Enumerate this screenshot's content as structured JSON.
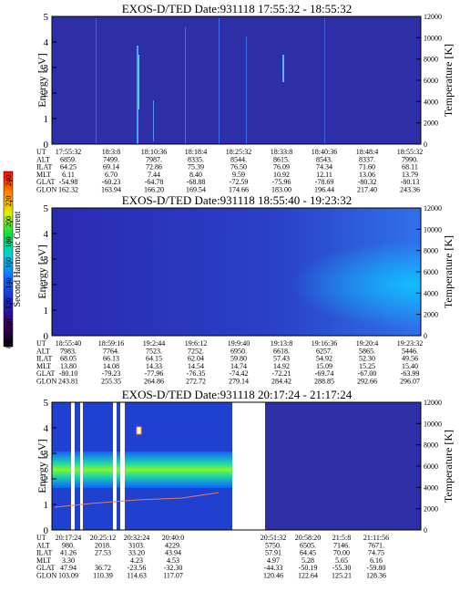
{
  "panels": [
    {
      "title": "EXOS-D/TED   Date:931118   17:55:32 - 18:55:32",
      "y_label": "Energy [eV]",
      "y2_label": "Temperature [K]",
      "ylim": [
        0,
        5
      ],
      "yticks": [
        0,
        1,
        2,
        3,
        4,
        5
      ],
      "y2lim": [
        0,
        12000
      ],
      "y2ticks": [
        0,
        2000,
        4000,
        6000,
        8000,
        10000,
        12000
      ],
      "table": {
        "row_labels": [
          "UT",
          "ALT",
          "ILAT",
          "MLT",
          "GLAT",
          "GLON"
        ],
        "rows": [
          [
            "17:55:32",
            "18:3:8",
            "18:10:36",
            "18:18:4",
            "18:25:32",
            "18:33:8",
            "18:40:36",
            "18:48:4",
            "18:55:32"
          ],
          [
            "6859.",
            "7499.",
            "7987.",
            "8335.",
            "8544.",
            "8615.",
            "8543.",
            "8337.",
            "7990."
          ],
          [
            "64.25",
            "69.14",
            "72.86",
            "75.39",
            "76.50",
            "76.09",
            "74.34",
            "71.60",
            "68.11"
          ],
          [
            "6.11",
            "6.70",
            "7.44",
            "8.40",
            "9.59",
            "10.92",
            "12.11",
            "13.06",
            "13.79"
          ],
          [
            "-54.98",
            "-60.23",
            "-64.78",
            "-68.88",
            "-72.59",
            "-75.96",
            "-78.69",
            "-80.32",
            "-80.13"
          ],
          [
            "162.32",
            "163.94",
            "166.20",
            "169.54",
            "174.66",
            "183.00",
            "196.44",
            "217.40",
            "243.36"
          ]
        ]
      }
    },
    {
      "title": "EXOS-D/TED   Date:931118   18:55:40 - 19:23:32",
      "y_label": "Energy [eV]",
      "y2_label": "Temperature [K]",
      "ylim": [
        0,
        5
      ],
      "yticks": [
        0,
        1,
        2,
        3,
        4,
        5
      ],
      "y2lim": [
        0,
        12000
      ],
      "y2ticks": [
        0,
        2000,
        4000,
        6000,
        8000,
        10000,
        12000
      ],
      "table": {
        "row_labels": [
          "UT",
          "ALT",
          "ILAT",
          "MLT",
          "GLAT",
          "GLON"
        ],
        "rows": [
          [
            "18:55:40",
            "18:59:16",
            "19:2:44",
            "19:6:12",
            "19:9:40",
            "19:13:8",
            "19:16:36",
            "19:20:4",
            "19:23:32"
          ],
          [
            "7983.",
            "7764.",
            "7523.",
            "7252.",
            "6950.",
            "6618.",
            "6257.",
            "5865.",
            "5446."
          ],
          [
            "68.05",
            "66.13",
            "64.15",
            "62.04",
            "59.80",
            "57.43",
            "54.92",
            "52.30",
            "49.56"
          ],
          [
            "13.80",
            "14.08",
            "14.33",
            "14.54",
            "14.74",
            "14.92",
            "15.09",
            "15.25",
            "15.40"
          ],
          [
            "-80.10",
            "-79.23",
            "-77.96",
            "-76.35",
            "-74.42",
            "-72.21",
            "-69.74",
            "-67.00",
            "-63.99"
          ],
          [
            "243.81",
            "255.35",
            "264.86",
            "272.72",
            "279.14",
            "284.42",
            "288.85",
            "292.66",
            "296.07"
          ]
        ]
      }
    },
    {
      "title": "EXOS-D/TED   Date:931118   20:17:24 - 21:17:24",
      "y_label": "Energy [eV]",
      "y2_label": "Temperature [K]",
      "ylim": [
        0,
        5
      ],
      "yticks": [
        0,
        1,
        2,
        3,
        4,
        5
      ],
      "y2lim": [
        0,
        12000
      ],
      "y2ticks": [
        0,
        2000,
        4000,
        6000,
        8000,
        10000,
        12000
      ],
      "table": {
        "row_labels": [
          "UT",
          "ALT",
          "ILAT",
          "MLT",
          "GLAT",
          "GLON"
        ],
        "rows": [
          [
            "20:17:24",
            "20:25:12",
            "20:32:24",
            "20:40:0",
            "20:51:32",
            "20:58:20",
            "21:5:8",
            "21:11:56"
          ],
          [
            "980.",
            "2018.",
            "3103.",
            "4229.",
            "5750.",
            "6505.",
            "7146.",
            "7671."
          ],
          [
            "41.26",
            "27.53",
            "33.20",
            "43.94",
            "57.91",
            "64.45",
            "70.00",
            "74.75"
          ],
          [
            "3.30",
            null,
            "4.23",
            "4.53",
            "4.97",
            "5.28",
            "5.65",
            "6.16"
          ],
          [
            "47.94",
            "36.72",
            "-23.56",
            "-32.30",
            "-44.33",
            "-50.19",
            "-55.30",
            "-59.80"
          ],
          [
            "103.09",
            "110.39",
            "114.63",
            "117.07",
            "120.46",
            "122.64",
            "125.21",
            "128.36"
          ]
        ]
      }
    }
  ],
  "colorbar": {
    "label": "Second Harmonic Current",
    "lim": [
      80,
      240
    ],
    "ticks": [
      80,
      100,
      120,
      140,
      160,
      180,
      200,
      220,
      240
    ]
  }
}
